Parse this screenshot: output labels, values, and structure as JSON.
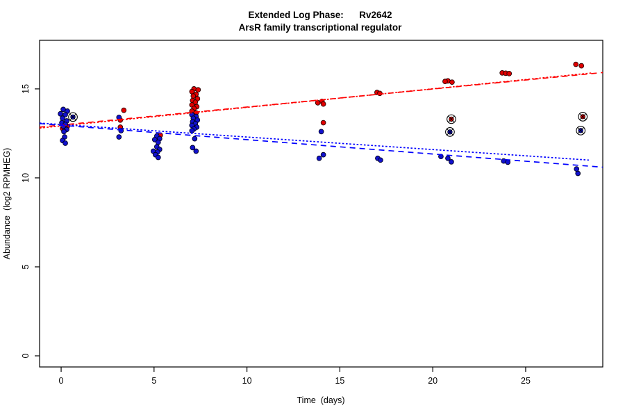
{
  "chart_data": {
    "type": "scatter",
    "title": "Extended Log Phase:      Rv2642",
    "subtitle": "ArsR family transcriptional regulator",
    "xlabel": "Time  (days)",
    "ylabel": "Abundance  (log2 RPMHEG)",
    "xlim": [
      -1.16,
      29.15
    ],
    "ylim": [
      -0.625,
      17.73
    ],
    "x_ticks": [
      0,
      5,
      10,
      15,
      20,
      25
    ],
    "y_ticks": [
      0,
      5,
      10,
      15
    ],
    "grid": false,
    "legend": "none",
    "colors": {
      "red_point_fill": "#e00000",
      "red_point_edge": "#2a0000",
      "blue_point_fill": "#1111cd",
      "blue_point_edge": "#000022",
      "red_line": "#ff0000",
      "blue_line": "#0000ff",
      "flag_ring": "#000000",
      "axis": "#000000"
    },
    "series": [
      {
        "name": "red-condition-points",
        "color_key": "red",
        "points": [
          [
            0,
            13.05,
            5
          ],
          [
            0,
            12.9,
            9
          ],
          [
            0,
            12.78,
            2
          ],
          [
            3,
            13.8,
            10
          ],
          [
            3,
            13.25,
            5
          ],
          [
            3,
            12.85,
            5
          ],
          [
            5,
            12.4,
            9
          ],
          [
            7,
            15.0,
            4
          ],
          [
            7,
            14.95,
            10
          ],
          [
            7,
            14.85,
            1
          ],
          [
            7,
            14.7,
            7
          ],
          [
            7,
            14.6,
            3
          ],
          [
            7,
            14.45,
            9
          ],
          [
            7,
            14.35,
            2
          ],
          [
            7,
            14.25,
            6
          ],
          [
            7,
            14.1,
            1
          ],
          [
            7,
            14.0,
            8
          ],
          [
            7,
            13.9,
            4
          ],
          [
            7,
            13.75,
            1
          ],
          [
            7,
            13.65,
            7
          ],
          [
            7,
            13.5,
            3
          ],
          [
            7,
            13.35,
            6
          ],
          [
            14,
            14.3,
            1
          ],
          [
            14,
            14.22,
            -5
          ],
          [
            14,
            14.15,
            3
          ],
          [
            14,
            13.1,
            3
          ],
          [
            17,
            14.8,
            0
          ],
          [
            17,
            14.75,
            4
          ],
          [
            21,
            15.45,
            -5
          ],
          [
            21,
            15.42,
            -9
          ],
          [
            21,
            15.38,
            1
          ],
          [
            24,
            15.9,
            -7
          ],
          [
            24,
            15.88,
            -2
          ],
          [
            24,
            15.86,
            3
          ],
          [
            28,
            16.38,
            -8
          ],
          [
            28,
            16.3,
            0
          ]
        ]
      },
      {
        "name": "blue-condition-points",
        "color_key": "blue",
        "points": [
          [
            0,
            13.85,
            3
          ],
          [
            0,
            13.75,
            9
          ],
          [
            0,
            13.6,
            -1
          ],
          [
            0,
            13.55,
            6
          ],
          [
            0,
            13.35,
            2
          ],
          [
            0,
            13.2,
            8
          ],
          [
            0,
            13.1,
            1
          ],
          [
            0,
            13.0,
            6
          ],
          [
            0,
            12.9,
            3
          ],
          [
            0,
            12.72,
            8
          ],
          [
            0,
            12.6,
            4
          ],
          [
            0,
            12.3,
            5
          ],
          [
            0,
            12.1,
            2
          ],
          [
            0,
            11.95,
            6
          ],
          [
            3,
            13.4,
            3
          ],
          [
            3,
            12.65,
            6
          ],
          [
            3,
            12.3,
            3
          ],
          [
            5,
            12.35,
            4
          ],
          [
            5,
            12.2,
            8
          ],
          [
            5,
            12.15,
            1
          ],
          [
            5,
            12.0,
            6
          ],
          [
            5,
            11.75,
            4
          ],
          [
            5,
            11.6,
            8
          ],
          [
            5,
            11.5,
            -1
          ],
          [
            5,
            11.45,
            5
          ],
          [
            5,
            11.3,
            2
          ],
          [
            5,
            11.15,
            6
          ],
          [
            7,
            13.55,
            1
          ],
          [
            7,
            13.45,
            7
          ],
          [
            7,
            13.35,
            3
          ],
          [
            7,
            13.25,
            9
          ],
          [
            7,
            13.15,
            2
          ],
          [
            7,
            13.05,
            6
          ],
          [
            7,
            12.95,
            1
          ],
          [
            7,
            12.85,
            8
          ],
          [
            7,
            12.75,
            4
          ],
          [
            7,
            12.65,
            1
          ],
          [
            7,
            12.2,
            5
          ],
          [
            7,
            11.7,
            2
          ],
          [
            7,
            11.5,
            7
          ],
          [
            14,
            12.6,
            0
          ],
          [
            14,
            11.3,
            3
          ],
          [
            14,
            11.1,
            -3
          ],
          [
            17,
            11.1,
            1
          ],
          [
            17,
            11.0,
            5
          ],
          [
            21,
            11.2,
            -15
          ],
          [
            21,
            11.1,
            -5
          ],
          [
            21,
            10.9,
            0
          ],
          [
            24,
            10.95,
            -5
          ],
          [
            24,
            10.88,
            1
          ],
          [
            28,
            10.5,
            -7
          ],
          [
            28,
            10.25,
            -5
          ]
        ]
      },
      {
        "name": "flagged-red-points",
        "color_key": "red",
        "marker": "circle-cross",
        "points": [
          [
            21,
            13.3,
            0
          ],
          [
            28,
            13.44,
            2
          ]
        ]
      },
      {
        "name": "flagged-blue-points",
        "color_key": "blue",
        "marker": "circle-cross",
        "points": [
          [
            0,
            13.42,
            17
          ],
          [
            21,
            12.58,
            -2
          ],
          [
            28,
            12.66,
            -1
          ]
        ]
      }
    ],
    "trend_lines": [
      {
        "name": "red-fit-dashed",
        "color_key": "red",
        "style": "dashed",
        "pts": [
          -1.16,
          12.85,
          29.15,
          15.92
        ]
      },
      {
        "name": "red-fit-dotted",
        "color_key": "red",
        "style": "dotted",
        "pts": [
          -1.16,
          12.8,
          28.6,
          15.9
        ]
      },
      {
        "name": "blue-fit-dashed",
        "color_key": "blue",
        "style": "dashed",
        "pts": [
          -1.16,
          13.05,
          29.15,
          10.6
        ]
      },
      {
        "name": "blue-fit-dotted",
        "color_key": "blue",
        "style": "dotted",
        "pts": [
          -1.16,
          13.08,
          28.4,
          11.0
        ]
      }
    ]
  }
}
